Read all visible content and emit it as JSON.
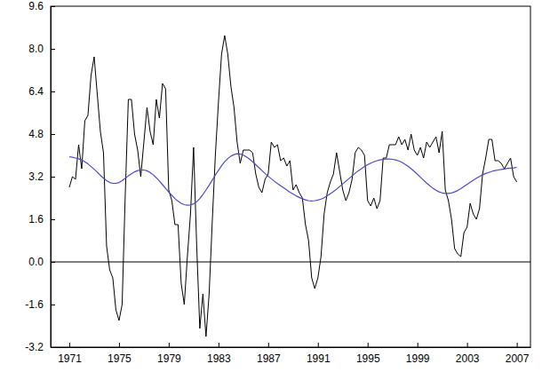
{
  "chart_data": {
    "type": "line",
    "x": [
      1971,
      1971.25,
      1971.5,
      1971.75,
      1972,
      1972.25,
      1972.5,
      1972.75,
      1973,
      1973.25,
      1973.5,
      1973.75,
      1974,
      1974.25,
      1974.5,
      1974.75,
      1975,
      1975.25,
      1975.5,
      1975.75,
      1976,
      1976.25,
      1976.5,
      1976.75,
      1977,
      1977.25,
      1977.5,
      1977.75,
      1978,
      1978.25,
      1978.5,
      1978.75,
      1979,
      1979.25,
      1979.5,
      1979.75,
      1980,
      1980.25,
      1980.5,
      1980.75,
      1981,
      1981.25,
      1981.5,
      1981.75,
      1982,
      1982.25,
      1982.5,
      1982.75,
      1983,
      1983.25,
      1983.5,
      1983.75,
      1984,
      1984.25,
      1984.5,
      1984.75,
      1985,
      1985.25,
      1985.5,
      1985.75,
      1986,
      1986.25,
      1986.5,
      1986.75,
      1987,
      1987.25,
      1987.5,
      1987.75,
      1988,
      1988.25,
      1988.5,
      1988.75,
      1989,
      1989.25,
      1989.5,
      1989.75,
      1990,
      1990.25,
      1990.5,
      1990.75,
      1991,
      1991.25,
      1991.5,
      1991.75,
      1992,
      1992.25,
      1992.5,
      1992.75,
      1993,
      1993.25,
      1993.5,
      1993.75,
      1994,
      1994.25,
      1994.5,
      1994.75,
      1995,
      1995.25,
      1995.5,
      1995.75,
      1996,
      1996.25,
      1996.5,
      1996.75,
      1997,
      1997.25,
      1997.5,
      1997.75,
      1998,
      1998.25,
      1998.5,
      1998.75,
      1999,
      1999.25,
      1999.5,
      1999.75,
      2000,
      2000.25,
      2000.5,
      2000.75,
      2001,
      2001.25,
      2001.5,
      2001.75,
      2002,
      2002.25,
      2002.5,
      2002.75,
      2003,
      2003.25,
      2003.5,
      2003.75,
      2004,
      2004.25,
      2004.5,
      2004.75,
      2005,
      2005.25,
      2005.5,
      2005.75,
      2006,
      2006.25,
      2006.5,
      2006.75,
      2007
    ],
    "xlim": [
      1969.5,
      2008.1
    ],
    "xticks": [
      1971,
      1975,
      1979,
      1983,
      1987,
      1991,
      1995,
      1999,
      2003,
      2007
    ],
    "ylim": [
      -3.2,
      9.6
    ],
    "yticks": [
      -3.2,
      -1.6,
      {
        "value": 0,
        "label": "0.0"
      },
      1.6,
      3.2,
      4.8,
      6.4,
      {
        "value": 8,
        "label": "8.0"
      },
      9.6
    ],
    "series": [
      {
        "color": "#000000",
        "values": [
          2.8,
          3.2,
          3.1,
          4.4,
          3.5,
          5.3,
          5.5,
          7.0,
          7.7,
          6.3,
          4.9,
          4.1,
          0.6,
          -0.3,
          -0.6,
          -1.8,
          -2.2,
          -1.6,
          2.5,
          6.1,
          6.1,
          4.8,
          4.2,
          3.2,
          4.5,
          5.8,
          4.9,
          4.4,
          6.1,
          5.4,
          6.7,
          6.5,
          2.7,
          2.3,
          1.4,
          1.4,
          -0.8,
          -1.6,
          0.2,
          1.8,
          4.3,
          0.6,
          -2.5,
          -1.2,
          -2.8,
          -1.2,
          1.5,
          4.0,
          6.0,
          7.8,
          8.5,
          7.8,
          6.6,
          5.8,
          4.5,
          3.7,
          4.2,
          4.2,
          4.2,
          4.1,
          3.3,
          2.8,
          2.6,
          3.1,
          3.3,
          4.5,
          4.3,
          4.4,
          3.8,
          3.9,
          3.6,
          3.8,
          2.7,
          2.9,
          2.6,
          2.4,
          1.4,
          0.8,
          -0.6,
          -1.0,
          -0.6,
          0.2,
          1.8,
          2.6,
          3.0,
          3.3,
          4.1,
          3.4,
          2.7,
          2.3,
          2.6,
          3.1,
          4.1,
          4.3,
          4.2,
          4.0,
          2.3,
          2.1,
          2.4,
          2.0,
          2.3,
          3.9,
          3.9,
          4.4,
          4.4,
          4.4,
          4.7,
          4.4,
          4.6,
          4.2,
          4.8,
          4.2,
          4.0,
          4.3,
          3.9,
          4.5,
          4.3,
          4.5,
          4.7,
          4.1,
          4.9,
          2.7,
          2.3,
          1.6,
          0.5,
          0.3,
          0.2,
          1.1,
          1.3,
          2.2,
          1.8,
          1.6,
          2.0,
          3.3,
          3.9,
          4.6,
          4.6,
          3.8,
          3.8,
          3.7,
          3.5,
          3.7,
          3.9,
          3.2,
          3.0
        ]
      },
      {
        "color": "#4a4ac8",
        "values": [
          3.95,
          3.93,
          3.9,
          3.87,
          3.83,
          3.76,
          3.68,
          3.58,
          3.48,
          3.37,
          3.25,
          3.14,
          3.05,
          2.98,
          2.95,
          2.95,
          2.98,
          3.05,
          3.14,
          3.23,
          3.31,
          3.38,
          3.43,
          3.45,
          3.45,
          3.42,
          3.36,
          3.27,
          3.16,
          3.04,
          2.9,
          2.76,
          2.62,
          2.5,
          2.38,
          2.28,
          2.2,
          2.15,
          2.13,
          2.14,
          2.18,
          2.26,
          2.38,
          2.53,
          2.7,
          2.88,
          3.07,
          3.26,
          3.44,
          3.61,
          3.76,
          3.88,
          3.97,
          4.03,
          4.06,
          4.05,
          4.01,
          3.94,
          3.86,
          3.76,
          3.65,
          3.54,
          3.43,
          3.32,
          3.22,
          3.12,
          3.03,
          2.94,
          2.86,
          2.78,
          2.7,
          2.62,
          2.55,
          2.48,
          2.42,
          2.37,
          2.33,
          2.3,
          2.29,
          2.3,
          2.32,
          2.36,
          2.41,
          2.48,
          2.56,
          2.64,
          2.73,
          2.83,
          2.93,
          3.03,
          3.13,
          3.23,
          3.33,
          3.42,
          3.5,
          3.58,
          3.65,
          3.71,
          3.76,
          3.8,
          3.83,
          3.85,
          3.86,
          3.86,
          3.85,
          3.83,
          3.79,
          3.74,
          3.67,
          3.59,
          3.5,
          3.4,
          3.29,
          3.18,
          3.07,
          2.96,
          2.86,
          2.77,
          2.69,
          2.63,
          2.59,
          2.57,
          2.57,
          2.59,
          2.63,
          2.68,
          2.75,
          2.83,
          2.91,
          2.99,
          3.07,
          3.14,
          3.21,
          3.27,
          3.32,
          3.36,
          3.4,
          3.43,
          3.45,
          3.47,
          3.49,
          3.51,
          3.52,
          3.53,
          3.55
        ]
      }
    ]
  }
}
